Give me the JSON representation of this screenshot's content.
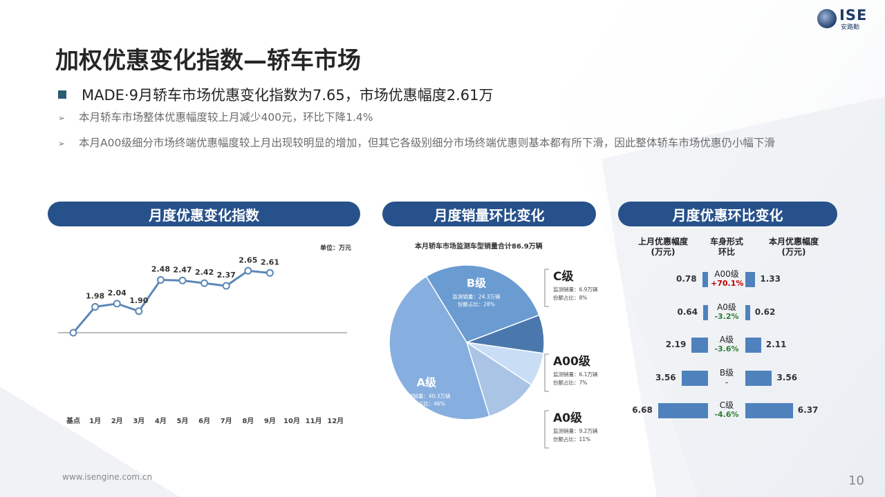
{
  "header": {
    "logo_text": "ISE",
    "logo_sub": "安路勤",
    "title": "加权优惠变化指数—轿车市场"
  },
  "bullets": {
    "main": "MADE·9月轿车市场优惠变化指数为7.65，市场优惠幅度2.61万",
    "sub1": "本月轿车市场整体优惠幅度较上月减少400元，环比下降1.4%",
    "sub2": "本月A00级细分市场终端优惠幅度较上月出现较明显的增加，但其它各级别细分市场终端优惠则基本都有所下滑，因此整体轿车市场优惠仍小幅下滑"
  },
  "panels": {
    "left_title": "月度优惠变化指数",
    "mid_title": "月度销量环比变化",
    "right_title": "月度优惠环比变化"
  },
  "line_chart": {
    "unit": "单位：万元",
    "categories": [
      "基点",
      "1月",
      "2月",
      "3月",
      "4月",
      "5月",
      "6月",
      "7月",
      "8月",
      "9月",
      "10月",
      "11月",
      "12月"
    ],
    "values": [
      null,
      1.98,
      2.04,
      1.9,
      2.48,
      2.47,
      2.42,
      2.37,
      2.65,
      2.61,
      null,
      null,
      null
    ],
    "labels": [
      "",
      "1.98",
      "2.04",
      "1.90",
      "2.48",
      "2.47",
      "2.42",
      "2.37",
      "2.65",
      "2.61",
      "",
      "",
      ""
    ],
    "color": "#5b87b8"
  },
  "pie": {
    "caption": "本月轿车市场监测车型销量合计86.9万辆",
    "slices": [
      {
        "name": "B级",
        "sales": "监测销量：24.3万辆",
        "share": "份额占比：28%",
        "value": 28,
        "color": "#6a9bd1"
      },
      {
        "name": "C级",
        "sales": "监测销量：6.9万辆",
        "share": "份额占比：8%",
        "value": 8,
        "color": "#4a78ad"
      },
      {
        "name": "A00级",
        "sales": "监测销量：6.1万辆",
        "share": "份额占比：7%",
        "value": 7,
        "color": "#c9def5"
      },
      {
        "name": "A0级",
        "sales": "监测销量：9.2万辆",
        "share": "份额占比：11%",
        "value": 11,
        "color": "#aac4e6"
      },
      {
        "name": "A级",
        "sales": "监测销量：40.3万辆",
        "share": "份额占比：46%",
        "value": 46,
        "color": "#86aede"
      }
    ]
  },
  "compare": {
    "hdr_left": "上月优惠幅度\n(万元)",
    "hdr_mid": "车身形式\n环比",
    "hdr_right": "本月优惠幅度\n(万元)",
    "rows": [
      {
        "seg": "A00级",
        "last": "0.78",
        "cur": "1.33",
        "chg": "+70.1%",
        "dir": "up",
        "lastv": 0.78,
        "curv": 1.33
      },
      {
        "seg": "A0级",
        "last": "0.64",
        "cur": "0.62",
        "chg": "-3.2%",
        "dir": "dn",
        "lastv": 0.64,
        "curv": 0.62
      },
      {
        "seg": "A级",
        "last": "2.19",
        "cur": "2.11",
        "chg": "-3.6%",
        "dir": "dn",
        "lastv": 2.19,
        "curv": 2.11
      },
      {
        "seg": "B级",
        "last": "3.56",
        "cur": "3.56",
        "chg": "-",
        "dir": "flat",
        "lastv": 3.56,
        "curv": 3.56
      },
      {
        "seg": "C级",
        "last": "6.68",
        "cur": "6.37",
        "chg": "-4.6%",
        "dir": "dn",
        "lastv": 6.68,
        "curv": 6.37
      }
    ]
  },
  "chart_data": {
    "type": "line",
    "categories": [
      "基点",
      "1月",
      "2月",
      "3月",
      "4月",
      "5月",
      "6月",
      "7月",
      "8月",
      "9月",
      "10月",
      "11月",
      "12月"
    ],
    "values": [
      null,
      1.98,
      2.04,
      1.9,
      2.48,
      2.47,
      2.42,
      2.37,
      2.65,
      2.61,
      null,
      null,
      null
    ],
    "title": "",
    "ylabel": "单位：万元"
  },
  "footer": {
    "url": "www.isengine.com.cn",
    "page": "10"
  }
}
